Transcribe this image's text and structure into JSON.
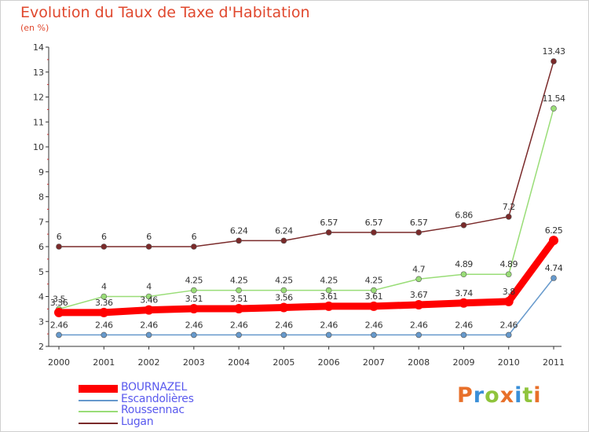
{
  "title": "Evolution du Taux de Taxe d'Habitation",
  "subtitle": "(en %)",
  "logo": {
    "text": "Proxiti",
    "colors": [
      "#e8702a",
      "#3a8fd8",
      "#8fc43c",
      "#e8702a",
      "#3a8fd8",
      "#8fc43c",
      "#e8702a"
    ]
  },
  "chart_data": {
    "type": "line",
    "title": "Evolution du Taux de Taxe d'Habitation",
    "ylabel": "(en %)",
    "xlabel": "",
    "x": [
      "2000",
      "2001",
      "2002",
      "2003",
      "2004",
      "2005",
      "2006",
      "2007",
      "2008",
      "2009",
      "2010",
      "2011"
    ],
    "ylim": [
      2,
      14
    ],
    "yticks": [
      2,
      3,
      4,
      5,
      6,
      7,
      8,
      9,
      10,
      11,
      12,
      13,
      14
    ],
    "grid": false,
    "legend_position": "bottom-left",
    "series": [
      {
        "name": "BOURNAZEL",
        "color": "#ff0000",
        "values": [
          3.36,
          3.36,
          3.46,
          3.51,
          3.51,
          3.56,
          3.61,
          3.61,
          3.67,
          3.74,
          3.8,
          6.25
        ],
        "labels": [
          "3.36",
          "3.36",
          "3.46",
          "3.51",
          "3.51",
          "3.56",
          "3.61",
          "3.61",
          "3.67",
          "3.74",
          "3.8",
          "6.25"
        ]
      },
      {
        "name": "Escandolières",
        "color": "#6699cc",
        "values": [
          2.46,
          2.46,
          2.46,
          2.46,
          2.46,
          2.46,
          2.46,
          2.46,
          2.46,
          2.46,
          2.46,
          4.74
        ],
        "labels": [
          "2.46",
          "2.46",
          "2.46",
          "2.46",
          "2.46",
          "2.46",
          "2.46",
          "2.46",
          "2.46",
          "2.46",
          "2.46",
          "4.74"
        ]
      },
      {
        "name": "Roussennac",
        "color": "#99dd77",
        "values": [
          3.5,
          4,
          4,
          4.25,
          4.25,
          4.25,
          4.25,
          4.25,
          4.7,
          4.89,
          4.89,
          11.54
        ],
        "labels": [
          "3.5",
          "4",
          "4",
          "4.25",
          "4.25",
          "4.25",
          "4.25",
          "4.25",
          "4.7",
          "4.89",
          "4.89",
          "11.54"
        ]
      },
      {
        "name": "Lugan",
        "color": "#7a2a2a",
        "values": [
          6,
          6,
          6,
          6,
          6.24,
          6.24,
          6.57,
          6.57,
          6.57,
          6.86,
          7.2,
          13.43
        ],
        "labels": [
          "6",
          "6",
          "6",
          "6",
          "6.24",
          "6.24",
          "6.57",
          "6.57",
          "6.57",
          "6.86",
          "7.2",
          "13.43"
        ]
      }
    ]
  }
}
